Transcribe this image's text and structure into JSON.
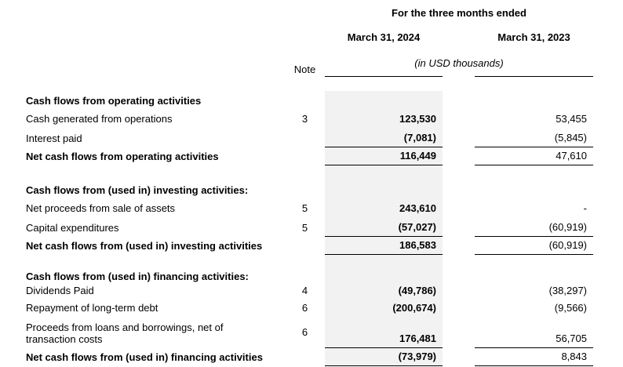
{
  "header": {
    "period": "For the three months ended",
    "col_2024": "March 31, 2024",
    "col_2023": "March 31, 2023",
    "units": "(in USD thousands)",
    "note_label": "Note"
  },
  "colors": {
    "highlight_column_bg": "#f2f2f2",
    "text": "#000000",
    "rule": "#000000"
  },
  "rows": [
    {
      "label": "Cash flows from operating activities",
      "note": "",
      "v2024": "",
      "v2023": ""
    },
    {
      "label": "Cash generated from operations",
      "note": "3",
      "v2024": "123,530",
      "v2023": "53,455"
    },
    {
      "label": "Interest paid",
      "note": "",
      "v2024": "(7,081)",
      "v2023": "(5,845)"
    },
    {
      "label": "Net cash flows from operating activities",
      "note": "",
      "v2024": "116,449",
      "v2023": "47,610"
    },
    {
      "label": "Cash flows from (used in) investing activities:",
      "note": "",
      "v2024": "",
      "v2023": ""
    },
    {
      "label": "Net proceeds from sale of assets",
      "note": "5",
      "v2024": "243,610",
      "v2023": "-"
    },
    {
      "label": "Capital expenditures",
      "note": "5",
      "v2024": "(57,027)",
      "v2023": "(60,919)"
    },
    {
      "label": "Net cash flows from (used in) investing activities",
      "note": "",
      "v2024": "186,583",
      "v2023": "(60,919)"
    },
    {
      "label": "Cash flows from (used in) financing activities:",
      "note": "",
      "v2024": "",
      "v2023": ""
    },
    {
      "label": "Dividends Paid",
      "note": "4",
      "v2024": "(49,786)",
      "v2023": "(38,297)"
    },
    {
      "label": "Repayment of long-term debt",
      "note": "6",
      "v2024": "(200,674)",
      "v2023": "(9,566)"
    },
    {
      "label": "Proceeds from loans and borrowings, net of transaction costs",
      "note": "6",
      "v2024": "176,481",
      "v2023": "56,705"
    },
    {
      "label": "Net cash flows from (used in) financing activities",
      "note": "",
      "v2024": "(73,979)",
      "v2023": "8,843"
    }
  ]
}
